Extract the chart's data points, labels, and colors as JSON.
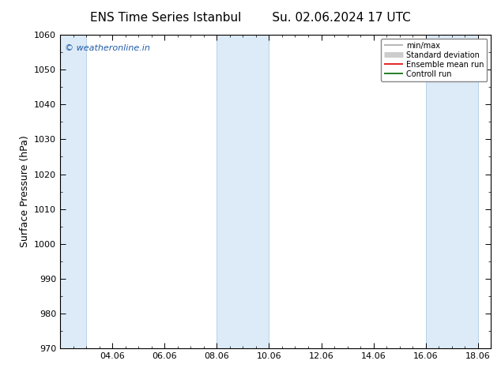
{
  "title_left": "ENS Time Series Istanbul",
  "title_right": "Su. 02.06.2024 17 UTC",
  "ylabel": "Surface Pressure (hPa)",
  "ylim": [
    970,
    1060
  ],
  "yticks": [
    970,
    980,
    990,
    1000,
    1010,
    1020,
    1030,
    1040,
    1050,
    1060
  ],
  "xlim": [
    2.0,
    18.5
  ],
  "xtick_positions": [
    4,
    6,
    8,
    10,
    12,
    14,
    16,
    18
  ],
  "xtick_labels": [
    "04.06",
    "06.06",
    "08.06",
    "10.06",
    "12.06",
    "14.06",
    "16.06",
    "18.06"
  ],
  "shaded_regions": [
    {
      "x_start": 2.0,
      "x_end": 3.0
    },
    {
      "x_start": 8.0,
      "x_end": 10.0
    },
    {
      "x_start": 16.0,
      "x_end": 18.0
    }
  ],
  "shaded_color": "#ddeaf7",
  "shaded_edge_color": "#b0cce8",
  "copyright_text": "© weatheronline.in",
  "copyright_color": "#1e5ba8",
  "bg_color": "#ffffff",
  "plot_bg_color": "#ffffff",
  "legend_items": [
    {
      "label": "min/max",
      "color": "#aaaaaa",
      "lw": 1.2
    },
    {
      "label": "Standard deviation",
      "color": "#cccccc",
      "lw": 5
    },
    {
      "label": "Ensemble mean run",
      "color": "#dd0000",
      "lw": 1.2
    },
    {
      "label": "Controll run",
      "color": "#006600",
      "lw": 1.2
    }
  ],
  "title_fontsize": 11,
  "tick_fontsize": 8,
  "ylabel_fontsize": 9,
  "copyright_fontsize": 8
}
